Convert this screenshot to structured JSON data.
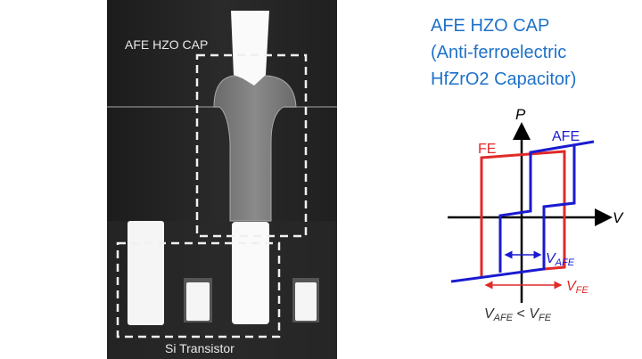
{
  "micrograph": {
    "cap_label": "AFE HZO CAP",
    "transistor_label": "Si Transistor"
  },
  "title": {
    "line1": "AFE HZO CAP",
    "line2": "(Anti-ferroelectric",
    "line3": "HfZrO2 Capacitor)",
    "color": "#1f72c8"
  },
  "hysteresis": {
    "axis_p": "P",
    "axis_v": "V",
    "fe_label": "FE",
    "afe_label": "AFE",
    "v_afe_main": "V",
    "v_afe_sub": "AFE",
    "v_fe_main": "V",
    "v_fe_sub": "FE",
    "relation": {
      "a_main": "V",
      "a_sub": "AFE",
      "op": " < ",
      "b_main": "V",
      "b_sub": "FE"
    },
    "colors": {
      "fe": "#e02a2a",
      "afe": "#1a1ad0",
      "axes": "#000000"
    }
  }
}
